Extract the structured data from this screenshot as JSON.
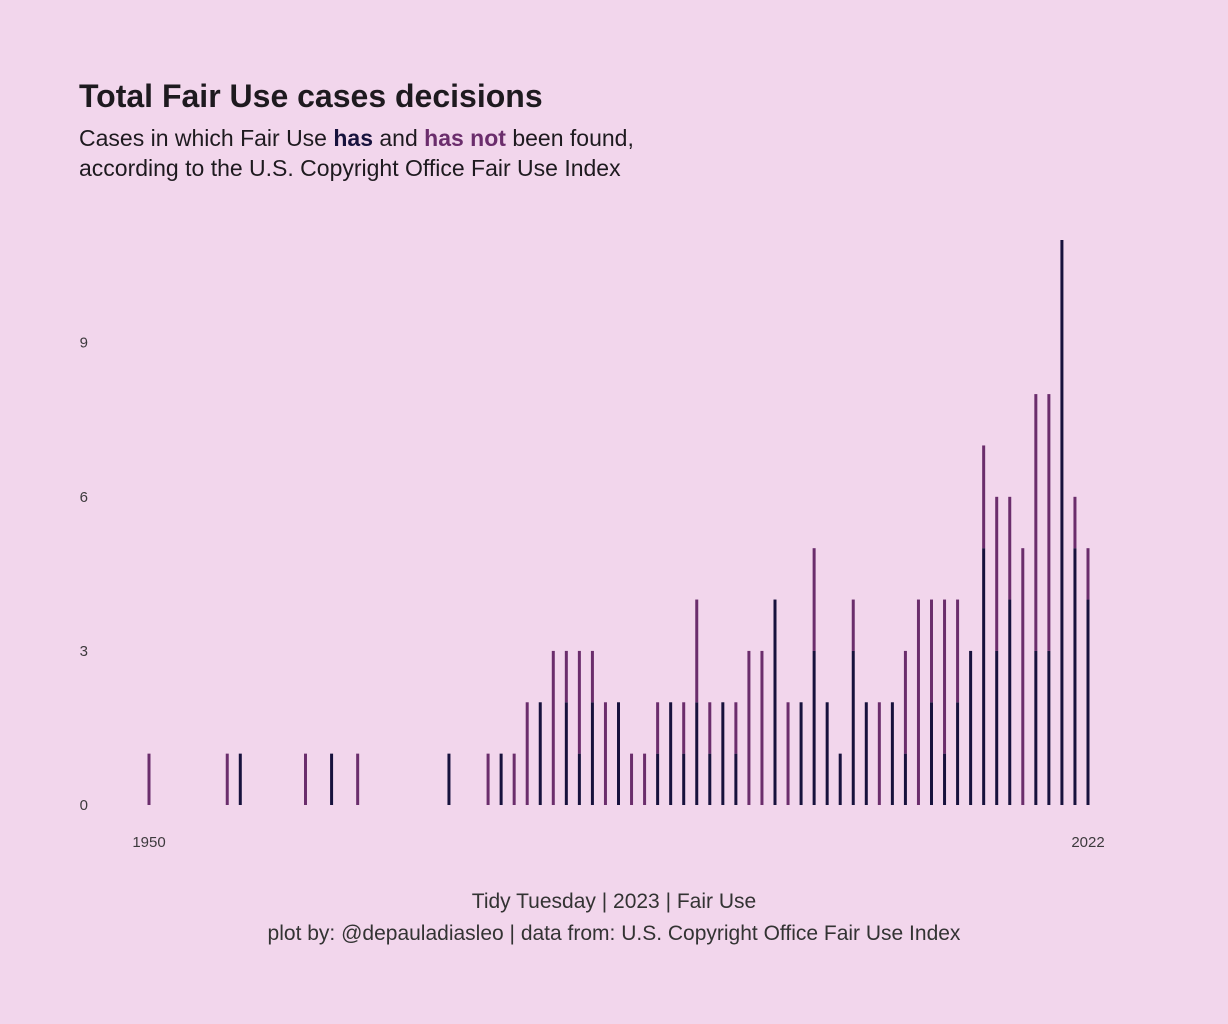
{
  "header": {
    "title": "Total Fair Use cases decisions",
    "subtitle_part1": "Cases in which Fair Use ",
    "subtitle_has": "has",
    "subtitle_part2": " and ",
    "subtitle_hasnot": "has not",
    "subtitle_part3": " been found,",
    "subtitle_line2": "according to the U.S. Copyright Office Fair Use Index"
  },
  "caption": {
    "line1": "Tidy Tuesday | 2023 | Fair Use",
    "line2": "plot by: @depauladiasleo | data from: U.S. Copyright Office Fair Use Index"
  },
  "colors": {
    "background": "#f2d6ec",
    "found": "#17123d",
    "not_found": "#6b2d6c"
  },
  "chart_data": {
    "type": "bar",
    "stacked": true,
    "xlim": [
      1950,
      2022
    ],
    "ylim": [
      0,
      11
    ],
    "x_ticks": [
      1950,
      2022
    ],
    "y_ticks": [
      0,
      3,
      6,
      9
    ],
    "grid": false,
    "x": [
      1950,
      1956,
      1957,
      1962,
      1964,
      1966,
      1973,
      1976,
      1977,
      1978,
      1979,
      1980,
      1981,
      1982,
      1983,
      1984,
      1985,
      1986,
      1987,
      1988,
      1989,
      1990,
      1991,
      1992,
      1993,
      1994,
      1995,
      1996,
      1997,
      1998,
      1999,
      2000,
      2001,
      2002,
      2003,
      2004,
      2005,
      2006,
      2007,
      2008,
      2009,
      2010,
      2011,
      2012,
      2013,
      2014,
      2015,
      2016,
      2017,
      2018,
      2019,
      2020,
      2021,
      2022
    ],
    "series": [
      {
        "name": "has",
        "values": [
          0,
          0,
          1,
          0,
          1,
          0,
          1,
          0,
          1,
          0,
          0,
          2,
          0,
          2,
          1,
          2,
          0,
          2,
          0,
          0,
          1,
          2,
          1,
          2,
          1,
          2,
          1,
          0,
          0,
          4,
          0,
          2,
          3,
          2,
          1,
          3,
          2,
          0,
          2,
          1,
          0,
          2,
          1,
          2,
          3,
          5,
          3,
          4,
          0,
          3,
          3,
          11,
          5,
          4
        ]
      },
      {
        "name": "has not",
        "values": [
          1,
          1,
          0,
          1,
          0,
          1,
          0,
          1,
          0,
          1,
          2,
          0,
          3,
          1,
          2,
          1,
          2,
          0,
          1,
          1,
          1,
          0,
          1,
          2,
          1,
          0,
          1,
          3,
          3,
          0,
          2,
          0,
          2,
          0,
          0,
          1,
          0,
          2,
          0,
          2,
          4,
          2,
          3,
          2,
          0,
          2,
          3,
          2,
          5,
          5,
          5,
          0,
          1,
          1
        ]
      }
    ]
  }
}
